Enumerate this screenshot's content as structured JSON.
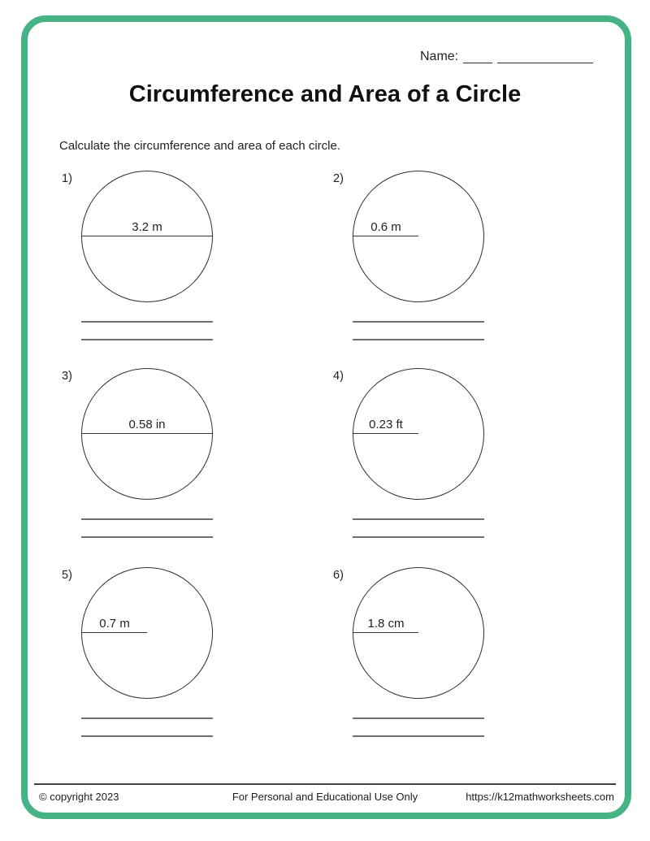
{
  "page": {
    "name_label": "Name:",
    "title": "Circumference and Area of a Circle",
    "instructions": "Calculate the circumference and area of each circle.",
    "accent_color": "#45B385"
  },
  "problems": [
    {
      "number": "1)",
      "label": "3.2 m",
      "line": "diameter"
    },
    {
      "number": "2)",
      "label": "0.6 m",
      "line": "radius"
    },
    {
      "number": "3)",
      "label": "0.58 in",
      "line": "diameter"
    },
    {
      "number": "4)",
      "label": "0.23 ft",
      "line": "radius"
    },
    {
      "number": "5)",
      "label": "0.7 m",
      "line": "radius"
    },
    {
      "number": "6)",
      "label": "1.8 cm",
      "line": "radius"
    }
  ],
  "footer": {
    "copyright": "© copyright 2023",
    "usage": "For Personal and Educational Use Only",
    "url": "https://k12mathworksheets.com"
  }
}
